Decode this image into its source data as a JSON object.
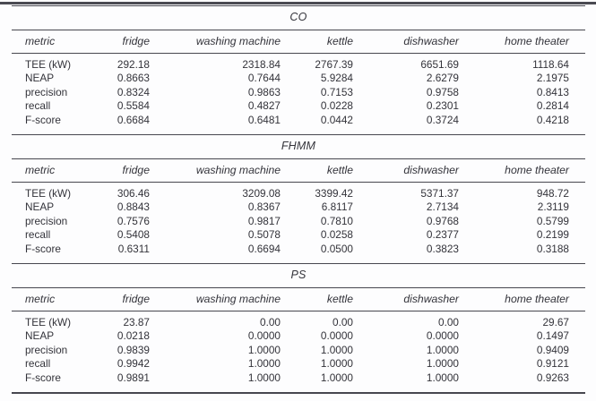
{
  "colors": {
    "background": "#fdfdfe",
    "text": "#33333a",
    "rule": "#47474f"
  },
  "columns": [
    "metric",
    "fridge",
    "washing machine",
    "kettle",
    "dishwasher",
    "home theater"
  ],
  "tables": [
    {
      "title": "CO",
      "rows": [
        {
          "label": "TEE (kW)",
          "values": [
            "292.18",
            "2318.84",
            "2767.39",
            "6651.69",
            "1118.64"
          ]
        },
        {
          "label": "NEAP",
          "values": [
            "0.8663",
            "0.7644",
            "5.9284",
            "2.6279",
            "2.1975"
          ]
        },
        {
          "label": "precision",
          "values": [
            "0.8324",
            "0.9863",
            "0.7153",
            "0.9758",
            "0.8413"
          ]
        },
        {
          "label": "recall",
          "values": [
            "0.5584",
            "0.4827",
            "0.0228",
            "0.2301",
            "0.2814"
          ]
        },
        {
          "label": "F-score",
          "values": [
            "0.6684",
            "0.6481",
            "0.0442",
            "0.3724",
            "0.4218"
          ]
        }
      ]
    },
    {
      "title": "FHMM",
      "rows": [
        {
          "label": "TEE (kW)",
          "values": [
            "306.46",
            "3209.08",
            "3399.42",
            "5371.37",
            "948.72"
          ]
        },
        {
          "label": "NEAP",
          "values": [
            "0.8843",
            "0.8367",
            "6.8117",
            "2.7134",
            "2.3119"
          ]
        },
        {
          "label": "precision",
          "values": [
            "0.7576",
            "0.9817",
            "0.7810",
            "0.9768",
            "0.5799"
          ]
        },
        {
          "label": "recall",
          "values": [
            "0.5408",
            "0.5078",
            "0.0258",
            "0.2377",
            "0.2199"
          ]
        },
        {
          "label": "F-score",
          "values": [
            "0.6311",
            "0.6694",
            "0.0500",
            "0.3823",
            "0.3188"
          ]
        }
      ]
    },
    {
      "title": "PS",
      "rows": [
        {
          "label": "TEE (kW)",
          "values": [
            "23.87",
            "0.00",
            "0.00",
            "0.00",
            "29.67"
          ]
        },
        {
          "label": "NEAP",
          "values": [
            "0.0218",
            "0.0000",
            "0.0000",
            "0.0000",
            "0.1497"
          ]
        },
        {
          "label": "precision",
          "values": [
            "0.9839",
            "1.0000",
            "1.0000",
            "1.0000",
            "0.9409"
          ]
        },
        {
          "label": "recall",
          "values": [
            "0.9942",
            "1.0000",
            "1.0000",
            "1.0000",
            "0.9121"
          ]
        },
        {
          "label": "F-score",
          "values": [
            "0.9891",
            "1.0000",
            "1.0000",
            "1.0000",
            "0.9263"
          ]
        }
      ]
    }
  ]
}
